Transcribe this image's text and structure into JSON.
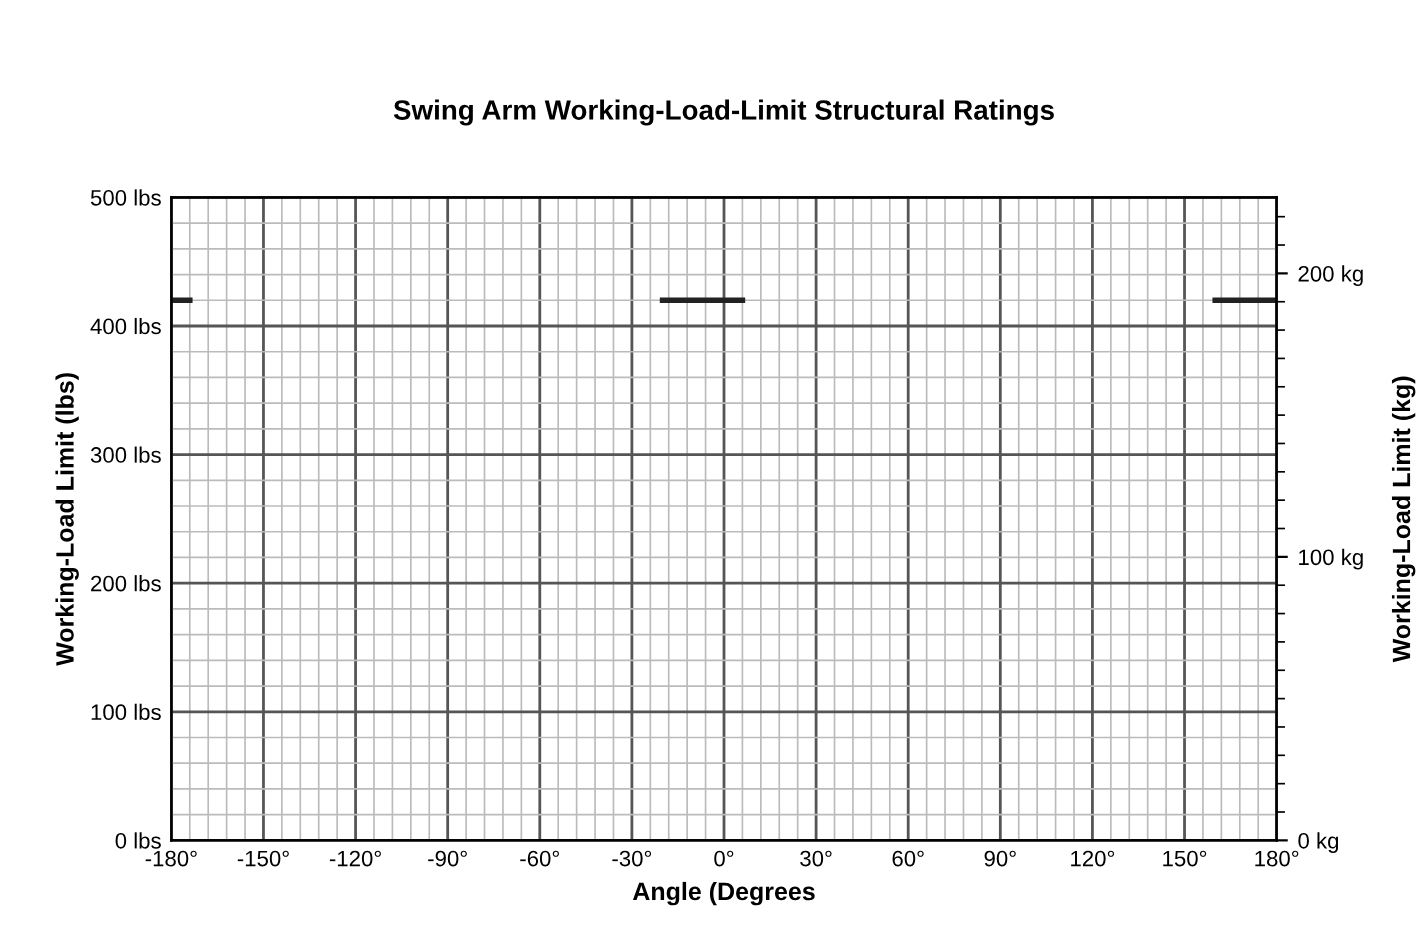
{
  "chart_data": {
    "type": "line",
    "title": "Swing Arm Working-Load-Limit Structural Ratings",
    "xlabel": "Angle (Degrees",
    "ylabel": "Working-Load Limit (lbs)",
    "y2label": "Working-Load Limit (kg)",
    "x": [
      -180,
      -174,
      -97,
      -20,
      6,
      83,
      160,
      180
    ],
    "series": [
      {
        "color": "#222222",
        "values": [
          420,
          420,
          null,
          420,
          420,
          null,
          420,
          420
        ]
      }
    ],
    "xlim": [
      -180,
      180
    ],
    "xticks": [
      {
        "value": -180,
        "label": "-180°"
      },
      {
        "value": -150,
        "label": "-150°"
      },
      {
        "value": -120,
        "label": "-120°"
      },
      {
        "value": -90,
        "label": "-90°"
      },
      {
        "value": -60,
        "label": "-60°"
      },
      {
        "value": -30,
        "label": "-30°"
      },
      {
        "value": 0,
        "label": "0°"
      },
      {
        "value": 30,
        "label": "30°"
      },
      {
        "value": 60,
        "label": "60°"
      },
      {
        "value": 90,
        "label": "90°"
      },
      {
        "value": 120,
        "label": "120°"
      },
      {
        "value": 150,
        "label": "150°"
      },
      {
        "value": 180,
        "label": "180°"
      }
    ],
    "ylim": [
      0,
      500
    ],
    "yticks": [
      {
        "value": 0,
        "label": "0 lbs"
      },
      {
        "value": 100,
        "label": "100 lbs"
      },
      {
        "value": 200,
        "label": "200 lbs"
      },
      {
        "value": 300,
        "label": "300 lbs"
      },
      {
        "value": 400,
        "label": "400 lbs"
      },
      {
        "value": 500,
        "label": "500 lbs"
      }
    ],
    "y2lim": [
      0,
      226.8
    ],
    "y2ticks": [
      {
        "value": 0,
        "label": "0 kg"
      },
      {
        "value": 100,
        "label": "100 kg"
      },
      {
        "value": 200,
        "label": "200 kg"
      }
    ],
    "grid": true,
    "marker": "none",
    "line_style": "solid"
  }
}
